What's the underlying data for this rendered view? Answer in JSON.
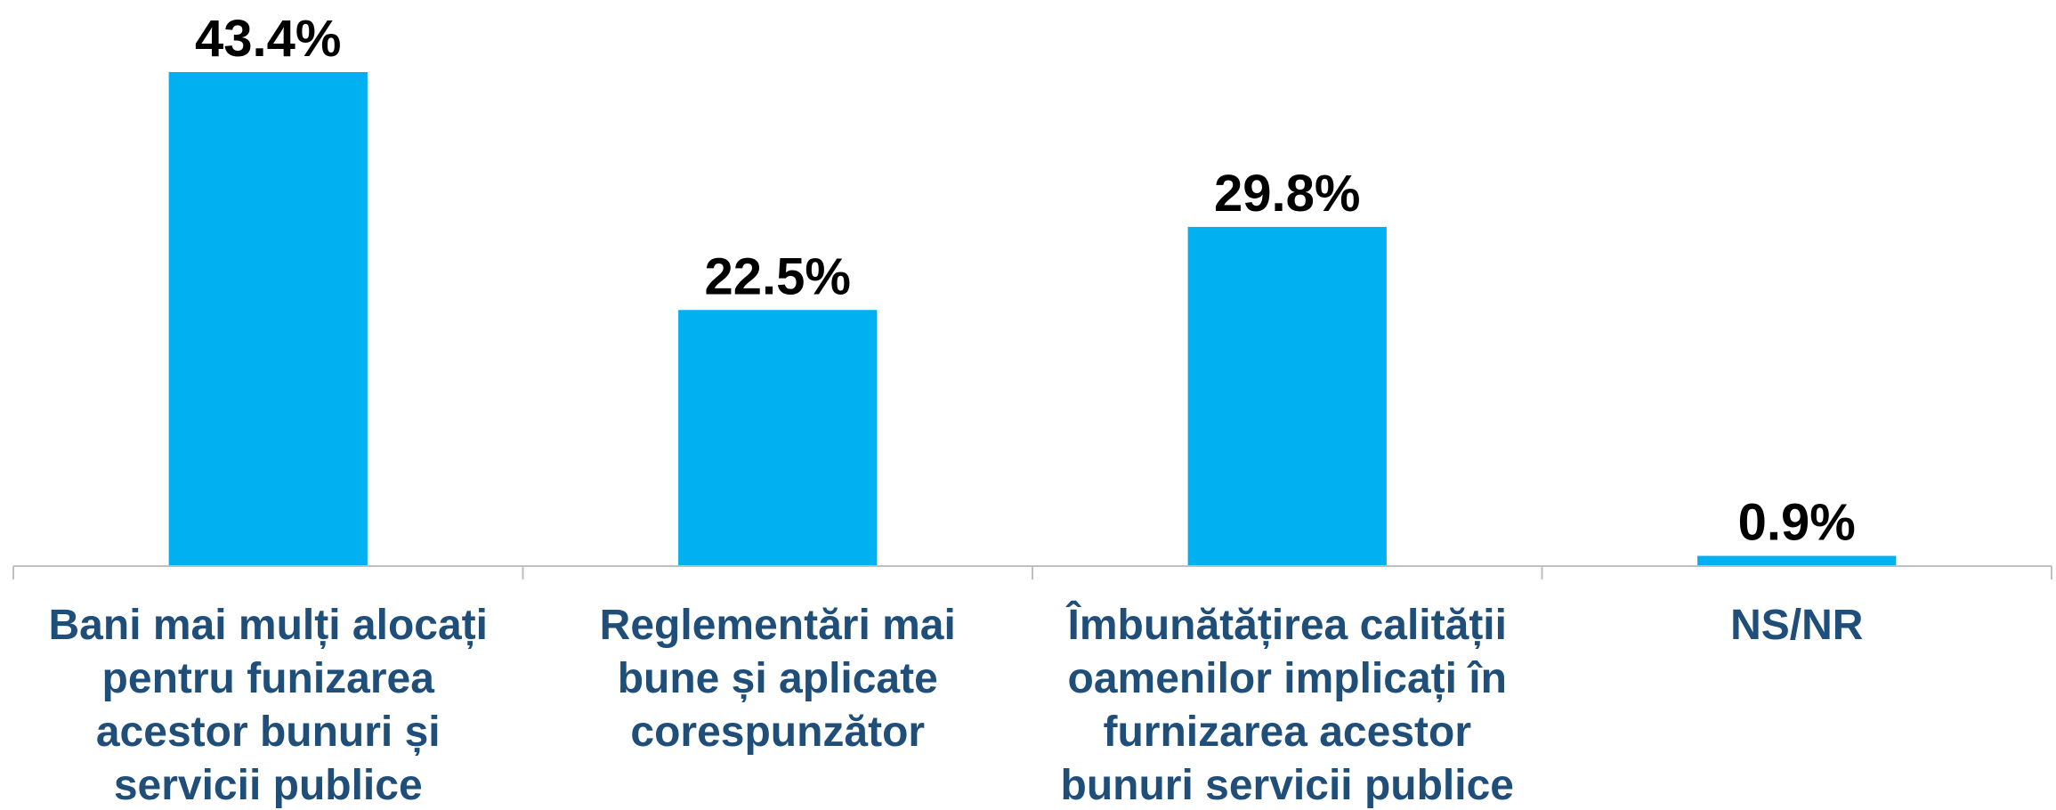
{
  "chart_data": {
    "type": "bar",
    "categories": [
      [
        "Bani mai mulți alocați",
        "pentru funizarea",
        "acestor bunuri și",
        "servicii publice"
      ],
      [
        "Reglementări mai",
        "bune și aplicate",
        "corespunzător"
      ],
      [
        "Îmbunătățirea calității",
        "oamenilor implicați în",
        "furnizarea acestor",
        "bunuri servicii publice"
      ],
      [
        "NS/NR"
      ]
    ],
    "values": [
      43.4,
      22.5,
      29.8,
      0.9
    ],
    "value_labels": [
      "43.4%",
      "22.5%",
      "29.8%",
      "0.9%"
    ],
    "color": "#00b0f0",
    "label_color": "#1f4e79"
  }
}
